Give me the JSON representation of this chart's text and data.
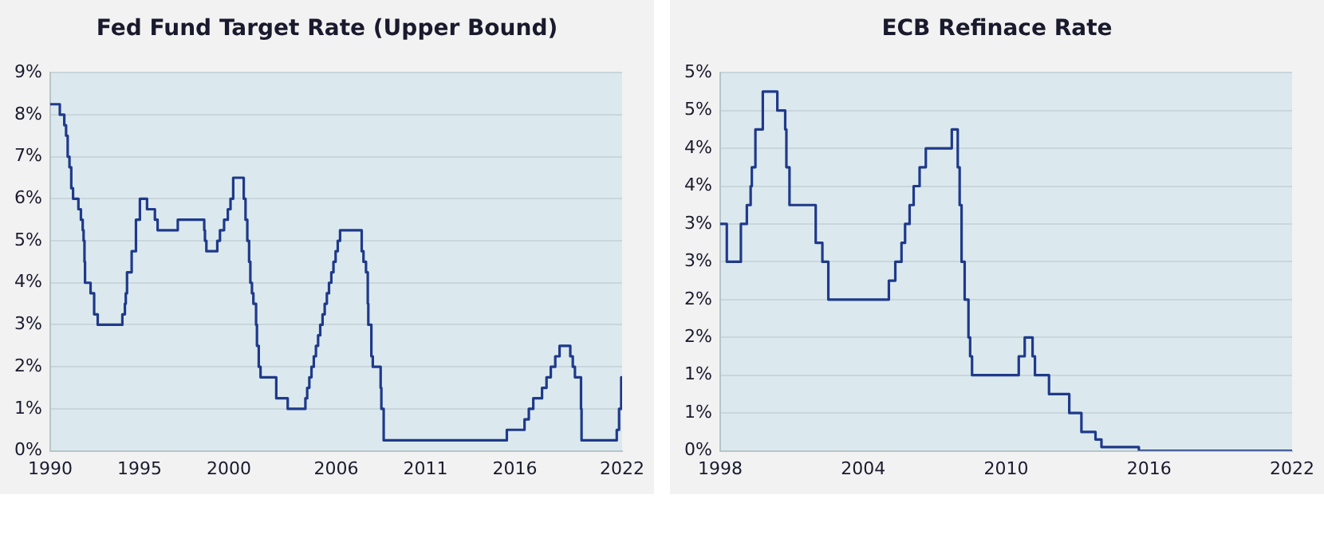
{
  "chart_data": [
    {
      "type": "step",
      "title": "Fed Fund Target Rate (Upper Bound)",
      "color": "#1f3a8a",
      "grid": "y",
      "x": [
        1990,
        1990.54,
        1990.79,
        1990.89,
        1990.98,
        1991.08,
        1991.18,
        1991.28,
        1991.58,
        1991.72,
        1991.82,
        1991.87,
        1991.92,
        1991.95,
        1992.26,
        1992.46,
        1992.66,
        1994.04,
        1994.18,
        1994.23,
        1994.3,
        1994.56,
        1994.8,
        1995.02,
        1995.42,
        1995.86,
        1996.01,
        1997.14,
        1998.62,
        1998.66,
        1998.74,
        1999.35,
        1999.5,
        1999.73,
        1999.94,
        2000.09,
        2000.24,
        2000.83,
        2000.93,
        2001.03,
        2001.13,
        2001.2,
        2001.29,
        2001.37,
        2001.52,
        2001.57,
        2001.67,
        2001.77,
        2002.65,
        2003.29,
        2004.28,
        2004.38,
        2004.5,
        2004.62,
        2004.75,
        2004.87,
        2004.99,
        2005.11,
        2005.24,
        2005.36,
        2005.48,
        2005.6,
        2005.73,
        2005.85,
        2005.97,
        2006.09,
        2006.22,
        2007.43,
        2007.53,
        2007.67,
        2007.77,
        2007.8,
        2007.97,
        2008.05,
        2008.49,
        2008.53,
        2008.66,
        2015.55,
        2016.54,
        2016.78,
        2017.03,
        2017.52,
        2017.77,
        2018.01,
        2018.26,
        2018.5,
        2019.1,
        2019.24,
        2019.36,
        2019.7,
        2019.73,
        2021.7,
        2021.83,
        2021.95,
        2022
      ],
      "values": [
        8.25,
        8,
        7.75,
        7.5,
        7,
        6.75,
        6.25,
        6,
        5.75,
        5.5,
        5.25,
        5,
        4.5,
        4,
        3.75,
        3.25,
        3,
        3.25,
        3.5,
        3.75,
        4.25,
        4.75,
        5.5,
        6,
        5.75,
        5.5,
        5.25,
        5.5,
        5.25,
        5,
        4.75,
        5,
        5.25,
        5.5,
        5.75,
        6,
        6.5,
        6,
        5.5,
        5,
        4.5,
        4,
        3.75,
        3.5,
        3,
        2.5,
        2,
        1.75,
        1.25,
        1,
        1.25,
        1.5,
        1.75,
        2,
        2.25,
        2.5,
        2.75,
        3,
        3.25,
        3.5,
        3.75,
        4,
        4.25,
        4.5,
        4.75,
        5,
        5.25,
        4.75,
        4.5,
        4.25,
        3.5,
        3,
        2.25,
        2,
        1.5,
        1,
        0.25,
        0.5,
        0.75,
        1,
        1.25,
        1.5,
        1.75,
        2,
        2.25,
        2.5,
        2.25,
        2,
        1.75,
        1,
        0.25,
        0.5,
        1,
        1.75,
        1.75
      ],
      "xlim": [
        1990,
        2022
      ],
      "xticks": [
        1990,
        1995,
        2000,
        2006,
        2011,
        2016,
        2022
      ],
      "ylim": [
        0,
        9
      ],
      "yticks": [
        {
          "value": 0,
          "label": "0%"
        },
        {
          "value": 1,
          "label": "1%"
        },
        {
          "value": 2,
          "label": "2%"
        },
        {
          "value": 3,
          "label": "3%"
        },
        {
          "value": 4,
          "label": "4%"
        },
        {
          "value": 5,
          "label": "5%"
        },
        {
          "value": 6,
          "label": "6%"
        },
        {
          "value": 7,
          "label": "7%"
        },
        {
          "value": 8,
          "label": "8%"
        },
        {
          "value": 9,
          "label": "9%"
        }
      ]
    },
    {
      "type": "step",
      "title": "ECB Refinace Rate",
      "color": "#1f3a8a",
      "grid": "y",
      "x": [
        1998,
        1998.28,
        1998.87,
        1999.12,
        1999.28,
        1999.33,
        1999.48,
        1999.79,
        2000.4,
        2000.73,
        2000.78,
        2000.91,
        2002.01,
        2002.29,
        2002.54,
        2005.08,
        2005.35,
        2005.61,
        2005.76,
        2005.95,
        2006.12,
        2006.37,
        2006.63,
        2007.72,
        2007.97,
        2008.05,
        2008.13,
        2008.26,
        2008.42,
        2008.49,
        2008.57,
        2010.53,
        2010.78,
        2011.11,
        2011.21,
        2011.8,
        2012.65,
        2013.16,
        2013.75,
        2014,
        2015.57,
        2022
      ],
      "values": [
        3,
        2.5,
        3,
        3.25,
        3.5,
        3.75,
        4.25,
        4.75,
        4.5,
        4.25,
        3.75,
        3.25,
        2.75,
        2.5,
        2,
        2.25,
        2.5,
        2.75,
        3,
        3.25,
        3.5,
        3.75,
        4,
        4.25,
        3.75,
        3.25,
        2.5,
        2,
        1.5,
        1.25,
        1,
        1.25,
        1.5,
        1.25,
        1,
        0.75,
        0.5,
        0.25,
        0.15,
        0.05,
        0,
        0
      ],
      "xlim": [
        1998,
        2022
      ],
      "xticks": [
        1998,
        2004,
        2010,
        2016,
        2022
      ],
      "ylim": [
        0,
        5
      ],
      "yticks": [
        {
          "value": 0,
          "label": "0%"
        },
        {
          "value": 0.5,
          "label": "1%"
        },
        {
          "value": 1,
          "label": "1%"
        },
        {
          "value": 1.5,
          "label": "2%"
        },
        {
          "value": 2,
          "label": "2%"
        },
        {
          "value": 2.5,
          "label": "3%"
        },
        {
          "value": 3,
          "label": "3%"
        },
        {
          "value": 3.5,
          "label": "4%"
        },
        {
          "value": 4,
          "label": "4%"
        },
        {
          "value": 4.5,
          "label": "5%"
        },
        {
          "value": 5,
          "label": "5%"
        }
      ]
    }
  ]
}
